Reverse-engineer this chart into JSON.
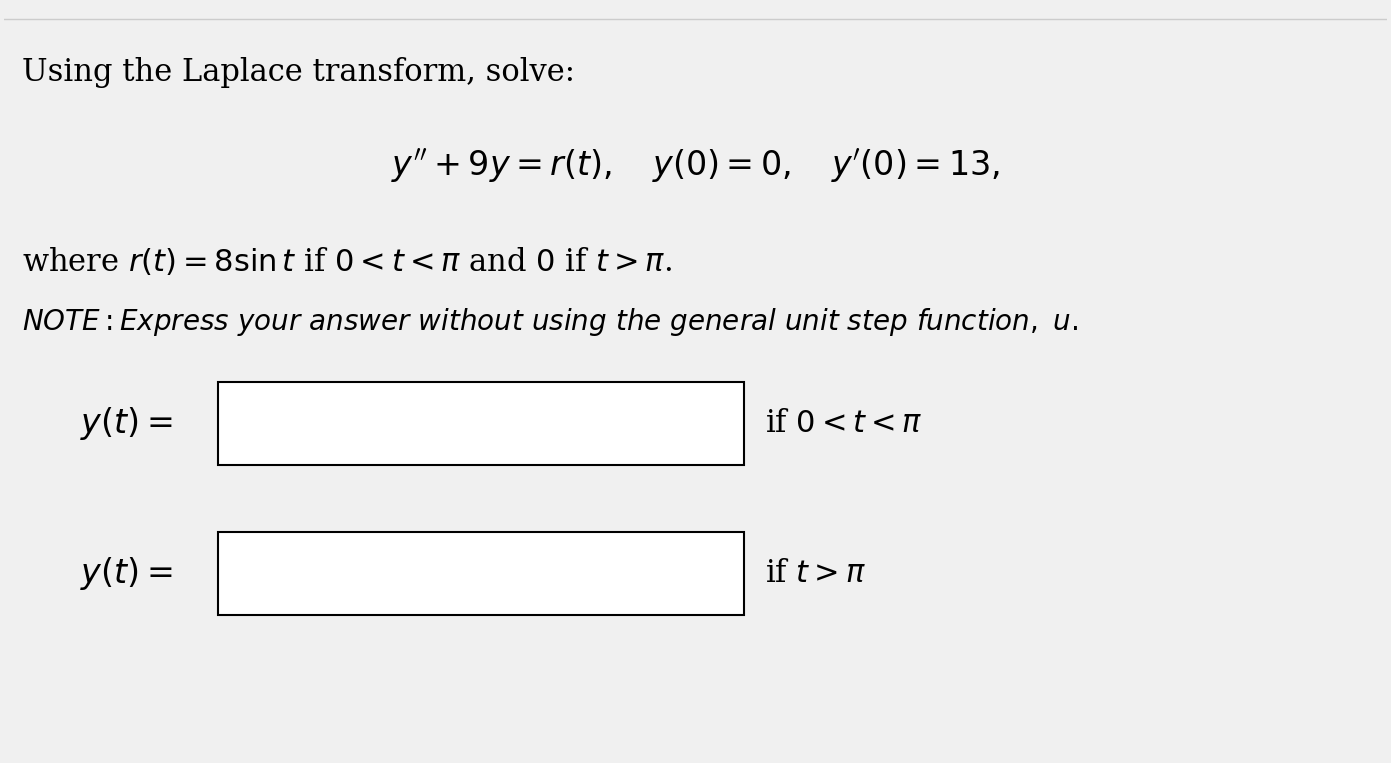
{
  "bg_color": "#f0f0f0",
  "text_color": "#000000",
  "box_color": "#ffffff",
  "box_edge_color": "#000000",
  "line1": "Using the Laplace transform, solve:",
  "line2": "$y'' + 9y = r(t), \\quad y(0) = 0, \\quad y'(0) = 13,$",
  "line3": "where $r(t) = 8\\sin t$ if $0 < t < \\pi$ and $0$ if $t > \\pi$.",
  "line4": "\\textit{NOTE: Express your answer without using the general unit step function, u.}",
  "label1": "$y(t) = $",
  "cond1": "if $0 < t < \\pi$",
  "label2": "$y(t) = $",
  "cond2": "if $t > \\pi$",
  "figwidth": 13.91,
  "figheight": 7.63,
  "dpi": 100,
  "font_size_main": 22,
  "font_size_note": 20,
  "font_size_eq": 24
}
